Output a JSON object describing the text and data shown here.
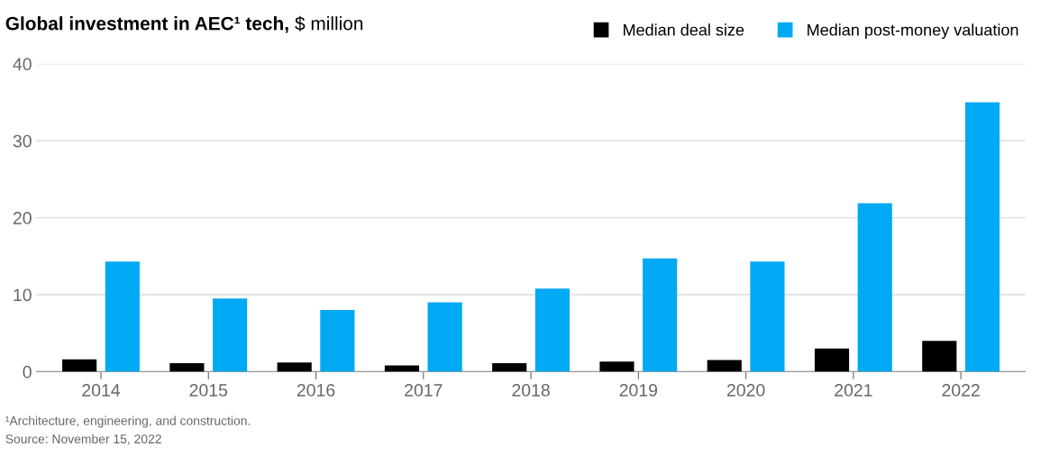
{
  "chart_data": {
    "type": "bar",
    "title": "Global investment in AEC¹ tech,",
    "subtitle": "$ million",
    "categories": [
      "2014",
      "2015",
      "2016",
      "2017",
      "2018",
      "2019",
      "2020",
      "2021",
      "2022"
    ],
    "series": [
      {
        "name": "Median deal size",
        "color": "#000000",
        "values": [
          1.6,
          1.1,
          1.2,
          0.8,
          1.1,
          1.3,
          1.5,
          3.0,
          4.0
        ]
      },
      {
        "name": "Median post-money valuation",
        "color": "#00a9f4",
        "values": [
          14.3,
          9.5,
          8.0,
          9.0,
          10.8,
          14.7,
          14.3,
          21.9,
          35.0
        ]
      }
    ],
    "ylim": [
      0,
      40
    ],
    "yticks": [
      0,
      10,
      20,
      30,
      40
    ],
    "grid": "y",
    "legend": "top right",
    "annotations": [
      "¹Architecture, engineering, and construction.",
      "Source: November 15, 2022"
    ]
  }
}
